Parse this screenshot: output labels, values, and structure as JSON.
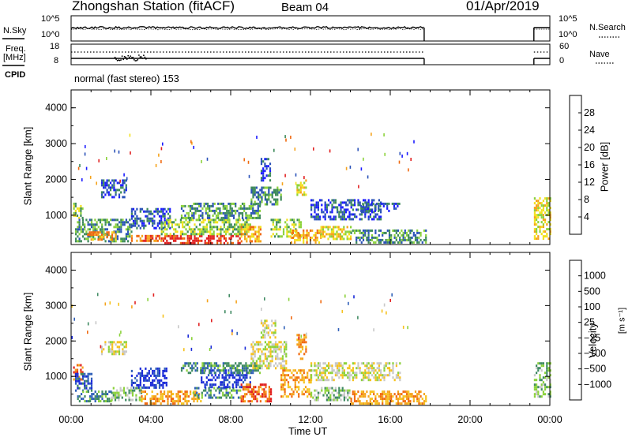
{
  "header": {
    "station": "Zhongshan Station (fitACF)",
    "beam": "Beam 04",
    "date": "01/Apr/2019"
  },
  "strip_panels": {
    "nsky_label": "N.Sky",
    "nsky_ticks": [
      "10^5",
      "10^0"
    ],
    "nsearch_label": "N.Search",
    "nsearch_ticks": [
      "10^5",
      "10^0"
    ],
    "freq_label_1": "Freq.",
    "freq_label_2": "[MHz]",
    "freq_ticks": [
      "18",
      "8"
    ],
    "nave_label": "Nave",
    "nave_ticks": [
      "60",
      "0"
    ],
    "cpid_label": "CPID",
    "cpid_text": "normal (fast stereo) 153"
  },
  "axes": {
    "ylabel": "Slant Range [km]",
    "xlabel": "Time UT",
    "x_ticks": [
      "00:00",
      "04:00",
      "08:00",
      "12:00",
      "16:00",
      "20:00",
      "00:00"
    ],
    "y_ticks": [
      "1000",
      "2000",
      "3000",
      "4000"
    ],
    "xlim_hours": [
      0,
      24
    ],
    "ylim_km": [
      180,
      4500
    ]
  },
  "colorbars": {
    "power": {
      "label": "Power [dB]",
      "ticks": [
        "4",
        "8",
        "12",
        "16",
        "20",
        "24",
        "28"
      ],
      "colors": [
        "#1a1aff",
        "#2a52b8",
        "#3e8a5a",
        "#8cd23c",
        "#f3e11e",
        "#f5a31c",
        "#f06a10",
        "#e12020"
      ]
    },
    "velocity": {
      "label": "Velocity",
      "unit": "[m s⁻¹]",
      "ticks": [
        "1000",
        "500",
        "100",
        "25",
        "−25",
        "−100",
        "−500",
        "−1000"
      ],
      "colors": [
        "#1a2ad8",
        "#2f5fb8",
        "#3f8a62",
        "#8cd23c",
        "#c8c8c8",
        "#f6c21e",
        "#f5a31c",
        "#f06a10",
        "#e12020"
      ]
    }
  },
  "chart_data": {
    "type": "heatmap",
    "x_unit": "hours UT",
    "y_unit": "km",
    "panels": [
      {
        "name": "Power",
        "regions": [
          {
            "t0": 0.1,
            "t1": 0.6,
            "r0": 900,
            "r1": 1350,
            "level": 3
          },
          {
            "t0": 0.2,
            "t1": 3.0,
            "r0": 300,
            "r1": 900,
            "level": 2
          },
          {
            "t0": 0.8,
            "t1": 2.2,
            "r0": 350,
            "r1": 550,
            "level": 5
          },
          {
            "t0": 1.5,
            "t1": 2.8,
            "r0": 1500,
            "r1": 2000,
            "level": 1
          },
          {
            "t0": 3.0,
            "t1": 4.5,
            "r0": 300,
            "r1": 450,
            "level": 6
          },
          {
            "t0": 3.0,
            "t1": 5.0,
            "r0": 650,
            "r1": 1200,
            "level": 1
          },
          {
            "t0": 4.5,
            "t1": 8.5,
            "r0": 220,
            "r1": 450,
            "level": 7
          },
          {
            "t0": 4.5,
            "t1": 9.0,
            "r0": 450,
            "r1": 900,
            "level": 3
          },
          {
            "t0": 5.5,
            "t1": 9.5,
            "r0": 900,
            "r1": 1350,
            "level": 2
          },
          {
            "t0": 8.5,
            "t1": 9.5,
            "r0": 280,
            "r1": 700,
            "level": 5
          },
          {
            "t0": 9.0,
            "t1": 10.5,
            "r0": 1300,
            "r1": 1800,
            "level": 2
          },
          {
            "t0": 9.5,
            "t1": 10.0,
            "r0": 2000,
            "r1": 2600,
            "level": 1
          },
          {
            "t0": 10.0,
            "t1": 11.5,
            "r0": 400,
            "r1": 900,
            "level": 3
          },
          {
            "t0": 11.0,
            "t1": 12.5,
            "r0": 250,
            "r1": 600,
            "level": 5
          },
          {
            "t0": 11.3,
            "t1": 11.8,
            "r0": 1600,
            "r1": 2000,
            "level": 4
          },
          {
            "t0": 12.5,
            "t1": 14.0,
            "r0": 350,
            "r1": 700,
            "level": 4
          },
          {
            "t0": 12.0,
            "t1": 15.5,
            "r0": 900,
            "r1": 1450,
            "level": 1
          },
          {
            "t0": 14.0,
            "t1": 17.8,
            "r0": 250,
            "r1": 600,
            "level": 2
          },
          {
            "t0": 14.5,
            "t1": 16.5,
            "r0": 1100,
            "r1": 1350,
            "level": 1
          },
          {
            "t0": 23.2,
            "t1": 24.0,
            "r0": 350,
            "r1": 1500,
            "level": 4
          }
        ]
      },
      {
        "name": "Velocity",
        "regions": [
          {
            "t0": 0.1,
            "t1": 0.6,
            "r0": 900,
            "r1": 1350,
            "level": 7
          },
          {
            "t0": 0.2,
            "t1": 1.0,
            "r0": 600,
            "r1": 1100,
            "level": 1
          },
          {
            "t0": 0.3,
            "t1": 2.0,
            "r0": 300,
            "r1": 600,
            "level": 2
          },
          {
            "t0": 1.5,
            "t1": 2.8,
            "r0": 1650,
            "r1": 2000,
            "level": 4
          },
          {
            "t0": 2.0,
            "t1": 3.5,
            "r0": 350,
            "r1": 700,
            "level": 3
          },
          {
            "t0": 3.0,
            "t1": 4.8,
            "r0": 650,
            "r1": 1250,
            "level": 0
          },
          {
            "t0": 3.5,
            "t1": 6.5,
            "r0": 220,
            "r1": 600,
            "level": 6
          },
          {
            "t0": 6.0,
            "t1": 8.5,
            "r0": 400,
            "r1": 700,
            "level": 2
          },
          {
            "t0": 6.5,
            "t1": 9.0,
            "r0": 700,
            "r1": 1200,
            "level": 0
          },
          {
            "t0": 5.5,
            "t1": 9.5,
            "r0": 1100,
            "r1": 1400,
            "level": 2
          },
          {
            "t0": 8.5,
            "t1": 10.0,
            "r0": 300,
            "r1": 800,
            "level": 7
          },
          {
            "t0": 9.0,
            "t1": 10.8,
            "r0": 1200,
            "r1": 2000,
            "level": 4
          },
          {
            "t0": 9.5,
            "t1": 10.2,
            "r0": 2100,
            "r1": 2600,
            "level": 4
          },
          {
            "t0": 10.5,
            "t1": 12.0,
            "r0": 400,
            "r1": 1200,
            "level": 6
          },
          {
            "t0": 11.3,
            "t1": 11.8,
            "r0": 1500,
            "r1": 2200,
            "level": 6
          },
          {
            "t0": 12.0,
            "t1": 14.0,
            "r0": 300,
            "r1": 700,
            "level": 3
          },
          {
            "t0": 12.0,
            "t1": 16.5,
            "r0": 900,
            "r1": 1400,
            "level": 4
          },
          {
            "t0": 14.0,
            "t1": 17.8,
            "r0": 250,
            "r1": 600,
            "level": 6
          },
          {
            "t0": 23.2,
            "t1": 24.0,
            "r0": 400,
            "r1": 1400,
            "level": 3
          }
        ]
      }
    ]
  }
}
